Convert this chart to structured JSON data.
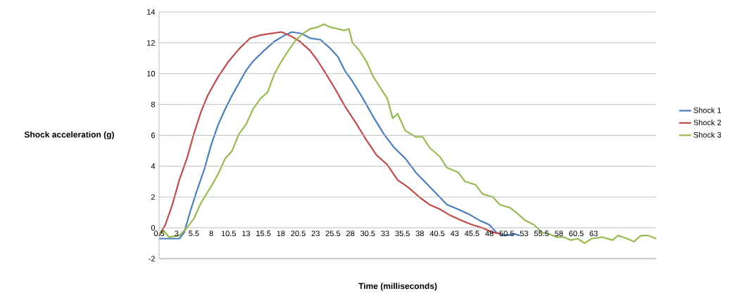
{
  "chart_data": {
    "type": "line",
    "xlabel": "Time (milliseconds)",
    "ylabel": "Shock acceleration (g)",
    "xlim": [
      0.5,
      72
    ],
    "ylim": [
      -2,
      14
    ],
    "xticks": [
      0.5,
      3,
      5.5,
      8,
      10.5,
      13,
      15.5,
      18,
      20.5,
      23,
      25.5,
      28,
      30.5,
      33,
      35.5,
      38,
      40.5,
      43,
      45.5,
      48,
      50.5,
      53,
      55.5,
      58,
      60.5,
      63
    ],
    "yticks": [
      -2,
      0,
      2,
      4,
      6,
      8,
      10,
      12,
      14
    ],
    "grid": "y",
    "legend": "right",
    "marker": "none",
    "line_style": "solid",
    "series": [
      {
        "name": "Shock 1",
        "color": "#4a7ebb",
        "x": [
          0.5,
          3.4,
          4.1,
          5,
          6,
          7,
          8,
          9,
          10,
          11,
          12,
          13,
          14,
          15.6,
          17.1,
          18.6,
          19.6,
          21,
          22.2,
          23.7,
          25.2,
          26.2,
          27.2,
          28.3,
          29.8,
          31.3,
          32.8,
          34.3,
          35.9,
          37.4,
          38.9,
          40.4,
          41.9,
          43.5,
          45,
          46.5,
          48,
          49,
          50,
          51.6,
          52.4
        ],
        "values": [
          -0.7,
          -0.7,
          -0.3,
          1.1,
          2.5,
          3.8,
          5.4,
          6.7,
          7.7,
          8.6,
          9.4,
          10.2,
          10.8,
          11.5,
          12.1,
          12.5,
          12.7,
          12.6,
          12.3,
          12.2,
          11.6,
          11.1,
          10.2,
          9.5,
          8.4,
          7.2,
          6.1,
          5.2,
          4.5,
          3.6,
          2.9,
          2.2,
          1.5,
          1.2,
          0.9,
          0.5,
          0.2,
          -0.3,
          -0.5,
          -0.4,
          -0.5
        ]
      },
      {
        "name": "Shock 2",
        "color": "#be4b48",
        "x": [
          0.5,
          1.4,
          2.4,
          3.4,
          4.5,
          5.5,
          6.5,
          7.5,
          9,
          10.5,
          12,
          13.6,
          15.1,
          16.6,
          18.1,
          19.6,
          20.7,
          22.2,
          23.2,
          24.2,
          25.7,
          27.2,
          28.8,
          30.3,
          31.8,
          33.3,
          34.8,
          36.4,
          37.9,
          39.4,
          40.9,
          42.4,
          43.9,
          45.5,
          47,
          48.5,
          49.7
        ],
        "values": [
          -0.5,
          0.2,
          1.5,
          3.1,
          4.5,
          6.1,
          7.5,
          8.6,
          9.8,
          10.8,
          11.6,
          12.3,
          12.5,
          12.6,
          12.7,
          12.4,
          12.1,
          11.5,
          10.9,
          10.2,
          9.1,
          7.9,
          6.8,
          5.7,
          4.7,
          4.1,
          3.1,
          2.6,
          2.0,
          1.5,
          1.2,
          0.8,
          0.5,
          0.2,
          0,
          -0.3,
          -0.4
        ]
      },
      {
        "name": "Shock 3",
        "color": "#98b954",
        "x": [
          0.5,
          1.2,
          1.9,
          3.4,
          4.5,
          5.5,
          6.5,
          8,
          9,
          10,
          11,
          12,
          13,
          14,
          15.1,
          16.1,
          17.1,
          18.1,
          19.1,
          20.2,
          21.2,
          22.2,
          23.2,
          24.2,
          25.2,
          26.2,
          27.2,
          27.8,
          28.3,
          29.3,
          30.3,
          31.3,
          32.3,
          33.3,
          34.1,
          34.8,
          35.9,
          37.4,
          38.4,
          39.4,
          40.9,
          41.9,
          43.5,
          44.5,
          46,
          47,
          48.5,
          49.5,
          51,
          52.1,
          53.1,
          54.4,
          55.6,
          56.6,
          57.6,
          58.7,
          59.7,
          60.7,
          61.7,
          62.7,
          64.2,
          65.7,
          66.5,
          67.8,
          68.8,
          69.8,
          70.8,
          72
        ],
        "values": [
          -0.4,
          -0.2,
          -0.6,
          -0.5,
          0,
          0.6,
          1.6,
          2.7,
          3.5,
          4.5,
          5,
          6.1,
          6.7,
          7.7,
          8.4,
          8.8,
          10,
          10.8,
          11.5,
          12.2,
          12.6,
          12.9,
          13.0,
          13.2,
          13.0,
          12.9,
          12.8,
          12.9,
          12.0,
          11.5,
          10.8,
          9.8,
          9.1,
          8.4,
          7.1,
          7.4,
          6.3,
          5.9,
          5.9,
          5.2,
          4.6,
          3.9,
          3.6,
          3.0,
          2.8,
          2.2,
          2.0,
          1.5,
          1.3,
          0.9,
          0.5,
          0.2,
          -0.3,
          -0.4,
          -0.6,
          -0.6,
          -0.8,
          -0.7,
          -1.0,
          -0.7,
          -0.6,
          -0.8,
          -0.5,
          -0.7,
          -0.9,
          -0.5,
          -0.5,
          -0.7
        ]
      }
    ]
  }
}
